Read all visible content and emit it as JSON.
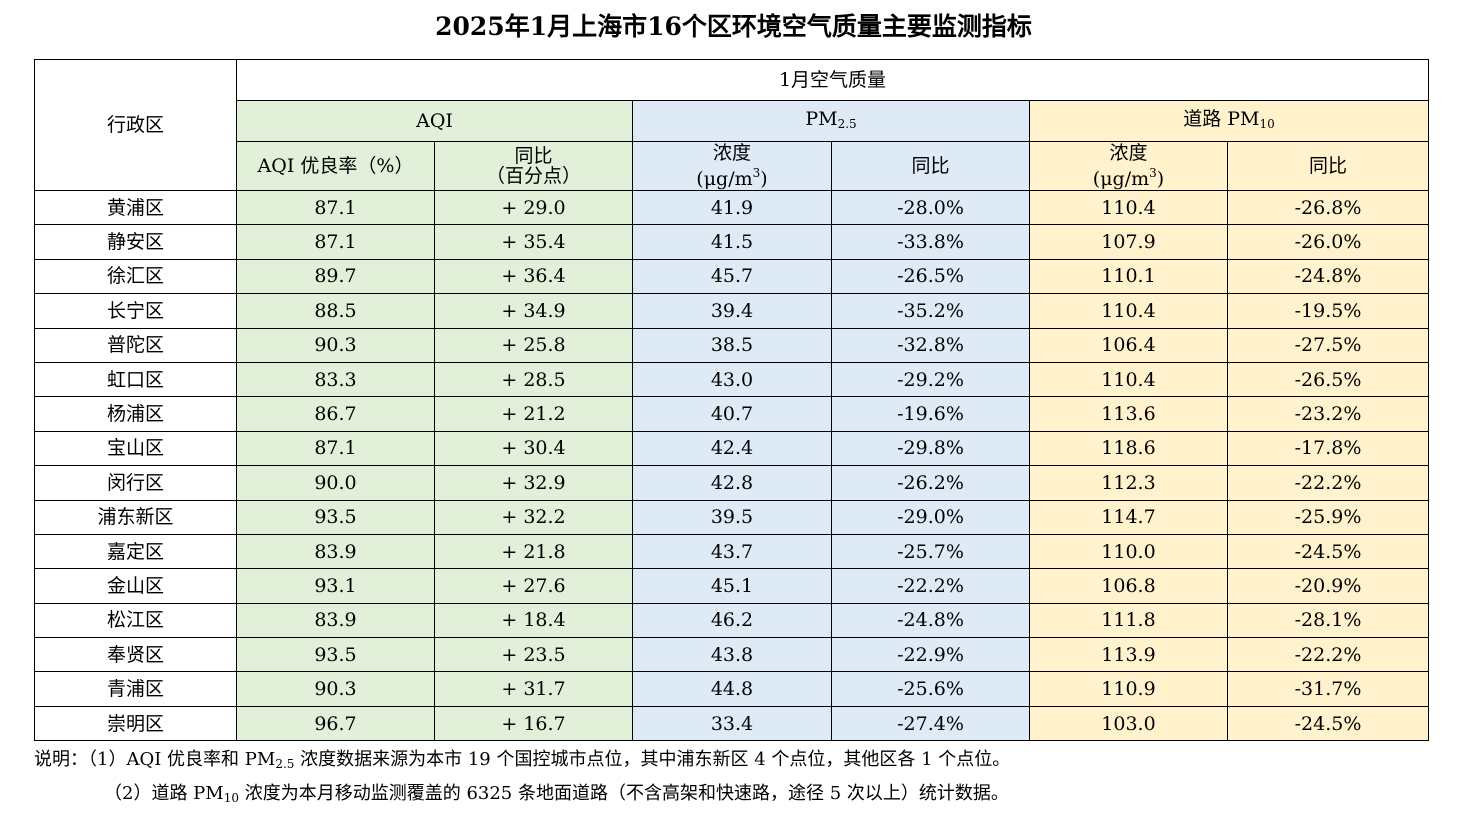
{
  "title": "2025年1月上海市16个区环境空气质量主要监测指标",
  "header": {
    "district": "行政区",
    "group": "1月空气质量",
    "aqi": "AQI",
    "pm25_base": "PM",
    "pm25_sub": "2.5",
    "road_pm10_base": "道路 PM",
    "road_pm10_sub": "10",
    "aqi_rate": "AQI 优良率（%）",
    "aqi_yoy_line1": "同比",
    "aqi_yoy_line2": "（百分点）",
    "conc_line1": "浓度",
    "conc_line2_a": "(μg/m",
    "conc_line2_sup": "3",
    "conc_line2_b": ")",
    "yoy": "同比"
  },
  "rows": [
    {
      "district": "黄浦区",
      "aqi_rate": "87.1",
      "aqi_yoy": "+ 29.0",
      "pm25": "41.9",
      "pm25_yoy": "-28.0%",
      "pm10": "110.4",
      "pm10_yoy": "-26.8%"
    },
    {
      "district": "静安区",
      "aqi_rate": "87.1",
      "aqi_yoy": "+ 35.4",
      "pm25": "41.5",
      "pm25_yoy": "-33.8%",
      "pm10": "107.9",
      "pm10_yoy": "-26.0%"
    },
    {
      "district": "徐汇区",
      "aqi_rate": "89.7",
      "aqi_yoy": "+ 36.4",
      "pm25": "45.7",
      "pm25_yoy": "-26.5%",
      "pm10": "110.1",
      "pm10_yoy": "-24.8%"
    },
    {
      "district": "长宁区",
      "aqi_rate": "88.5",
      "aqi_yoy": "+ 34.9",
      "pm25": "39.4",
      "pm25_yoy": "-35.2%",
      "pm10": "110.4",
      "pm10_yoy": "-19.5%"
    },
    {
      "district": "普陀区",
      "aqi_rate": "90.3",
      "aqi_yoy": "+ 25.8",
      "pm25": "38.5",
      "pm25_yoy": "-32.8%",
      "pm10": "106.4",
      "pm10_yoy": "-27.5%"
    },
    {
      "district": "虹口区",
      "aqi_rate": "83.3",
      "aqi_yoy": "+ 28.5",
      "pm25": "43.0",
      "pm25_yoy": "-29.2%",
      "pm10": "110.4",
      "pm10_yoy": "-26.5%"
    },
    {
      "district": "杨浦区",
      "aqi_rate": "86.7",
      "aqi_yoy": "+ 21.2",
      "pm25": "40.7",
      "pm25_yoy": "-19.6%",
      "pm10": "113.6",
      "pm10_yoy": "-23.2%"
    },
    {
      "district": "宝山区",
      "aqi_rate": "87.1",
      "aqi_yoy": "+ 30.4",
      "pm25": "42.4",
      "pm25_yoy": "-29.8%",
      "pm10": "118.6",
      "pm10_yoy": "-17.8%"
    },
    {
      "district": "闵行区",
      "aqi_rate": "90.0",
      "aqi_yoy": "+ 32.9",
      "pm25": "42.8",
      "pm25_yoy": "-26.2%",
      "pm10": "112.3",
      "pm10_yoy": "-22.2%"
    },
    {
      "district": "浦东新区",
      "aqi_rate": "93.5",
      "aqi_yoy": "+ 32.2",
      "pm25": "39.5",
      "pm25_yoy": "-29.0%",
      "pm10": "114.7",
      "pm10_yoy": "-25.9%"
    },
    {
      "district": "嘉定区",
      "aqi_rate": "83.9",
      "aqi_yoy": "+ 21.8",
      "pm25": "43.7",
      "pm25_yoy": "-25.7%",
      "pm10": "110.0",
      "pm10_yoy": "-24.5%"
    },
    {
      "district": "金山区",
      "aqi_rate": "93.1",
      "aqi_yoy": "+ 27.6",
      "pm25": "45.1",
      "pm25_yoy": "-22.2%",
      "pm10": "106.8",
      "pm10_yoy": "-20.9%"
    },
    {
      "district": "松江区",
      "aqi_rate": "83.9",
      "aqi_yoy": "+ 18.4",
      "pm25": "46.2",
      "pm25_yoy": "-24.8%",
      "pm10": "111.8",
      "pm10_yoy": "-28.1%"
    },
    {
      "district": "奉贤区",
      "aqi_rate": "93.5",
      "aqi_yoy": "+ 23.5",
      "pm25": "43.8",
      "pm25_yoy": "-22.9%",
      "pm10": "113.9",
      "pm10_yoy": "-22.2%"
    },
    {
      "district": "青浦区",
      "aqi_rate": "90.3",
      "aqi_yoy": "+ 31.7",
      "pm25": "44.8",
      "pm25_yoy": "-25.6%",
      "pm10": "110.9",
      "pm10_yoy": "-31.7%"
    },
    {
      "district": "崇明区",
      "aqi_rate": "96.7",
      "aqi_yoy": "+ 16.7",
      "pm25": "33.4",
      "pm25_yoy": "-27.4%",
      "pm10": "103.0",
      "pm10_yoy": "-24.5%"
    }
  ],
  "notes": {
    "note1_a": "说明：（1）AQI 优良率和 PM",
    "note1_sub": "2.5",
    "note1_b": " 浓度数据来源为本市 19 个国控城市点位，其中浦东新区 4 个点位，其他区各 1 个点位。",
    "note2_a": "（2）道路 PM",
    "note2_sub": "10",
    "note2_b": " 浓度为本月移动监测覆盖的 6325 条地面道路（不含高架和快速路，途径 5 次以上）统计数据。"
  },
  "colors": {
    "aqi_bg": "#e2efd9",
    "pm25_bg": "#deeaf6",
    "pm10_bg": "#fff2cc"
  }
}
